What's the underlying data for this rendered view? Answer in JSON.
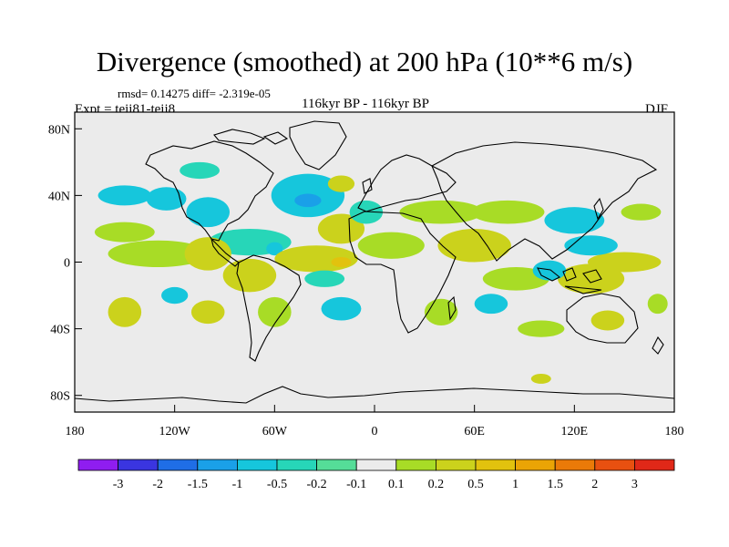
{
  "title": "Divergence (smoothed) at 200 hPa (10**6 m/s)",
  "stats_text": "rmsd= 0.14275 diff= -2.319e-05",
  "experiment": "Expt = teii81-teii8",
  "period": "116kyr BP - 116kyr BP",
  "season": "DJF",
  "map": {
    "lon_range": [
      -180,
      180
    ],
    "lat_range": [
      -90,
      90
    ],
    "x_ticks": [
      {
        "lon": -180,
        "label": "180"
      },
      {
        "lon": -120,
        "label": "120W"
      },
      {
        "lon": -60,
        "label": "60W"
      },
      {
        "lon": 0,
        "label": "0"
      },
      {
        "lon": 60,
        "label": "60E"
      },
      {
        "lon": 120,
        "label": "120E"
      },
      {
        "lon": 180,
        "label": "180"
      }
    ],
    "y_ticks": [
      {
        "lat": 80,
        "label": "80N"
      },
      {
        "lat": 40,
        "label": "40N"
      },
      {
        "lat": 0,
        "label": "0"
      },
      {
        "lat": -40,
        "label": "40S"
      },
      {
        "lat": -80,
        "label": "80S"
      }
    ],
    "background_color": "#ebebeb",
    "coastline_color": "#000000"
  },
  "colorbar": {
    "levels": [
      "-3",
      "-2",
      "-1.5",
      "-1",
      "-0.5",
      "-0.2",
      "-0.1",
      "0.1",
      "0.2",
      "0.5",
      "1",
      "1.5",
      "2",
      "3"
    ],
    "colors": [
      "#8f1df0",
      "#3a35e0",
      "#1f6ee6",
      "#1aa0e8",
      "#16c6dc",
      "#27d6b8",
      "#55dd98",
      "#ebebeb",
      "#a8dc26",
      "#cbd21c",
      "#e2c20e",
      "#eaa405",
      "#ea7a08",
      "#e85010",
      "#e02818"
    ]
  },
  "anomaly_patches": [
    {
      "lon": -150,
      "lat": 40,
      "rx": 16,
      "ry": 6,
      "level": 4
    },
    {
      "lon": -125,
      "lat": 38,
      "rx": 12,
      "ry": 7,
      "level": 4
    },
    {
      "lon": -100,
      "lat": 30,
      "rx": 13,
      "ry": 9,
      "level": 4
    },
    {
      "lon": -40,
      "lat": 40,
      "rx": 22,
      "ry": 13,
      "level": 4
    },
    {
      "lon": -40,
      "lat": 37,
      "rx": 8,
      "ry": 4,
      "level": 3
    },
    {
      "lon": -75,
      "lat": 12,
      "rx": 25,
      "ry": 8,
      "level": 5
    },
    {
      "lon": -60,
      "lat": 8,
      "rx": 5,
      "ry": 4,
      "level": 4
    },
    {
      "lon": -20,
      "lat": 47,
      "rx": 8,
      "ry": 5,
      "level": 9
    },
    {
      "lon": -20,
      "lat": 20,
      "rx": 14,
      "ry": 9,
      "level": 9
    },
    {
      "lon": -5,
      "lat": 30,
      "rx": 10,
      "ry": 7,
      "level": 5
    },
    {
      "lon": 10,
      "lat": 10,
      "rx": 20,
      "ry": 8,
      "level": 8
    },
    {
      "lon": -105,
      "lat": 55,
      "rx": 12,
      "ry": 5,
      "level": 5
    },
    {
      "lon": -130,
      "lat": 5,
      "rx": 30,
      "ry": 8,
      "level": 8
    },
    {
      "lon": -150,
      "lat": 18,
      "rx": 18,
      "ry": 6,
      "level": 8
    },
    {
      "lon": -100,
      "lat": 5,
      "rx": 14,
      "ry": 10,
      "level": 9
    },
    {
      "lon": -75,
      "lat": -8,
      "rx": 16,
      "ry": 10,
      "level": 9
    },
    {
      "lon": -35,
      "lat": 2,
      "rx": 25,
      "ry": 8,
      "level": 9
    },
    {
      "lon": -20,
      "lat": 0,
      "rx": 6,
      "ry": 3,
      "level": 10
    },
    {
      "lon": -30,
      "lat": -10,
      "rx": 12,
      "ry": 5,
      "level": 5
    },
    {
      "lon": 40,
      "lat": 30,
      "rx": 25,
      "ry": 7,
      "level": 8
    },
    {
      "lon": 80,
      "lat": 30,
      "rx": 22,
      "ry": 7,
      "level": 8
    },
    {
      "lon": 60,
      "lat": 10,
      "rx": 22,
      "ry": 10,
      "level": 9
    },
    {
      "lon": 85,
      "lat": -10,
      "rx": 20,
      "ry": 7,
      "level": 8
    },
    {
      "lon": 130,
      "lat": -10,
      "rx": 20,
      "ry": 9,
      "level": 9
    },
    {
      "lon": 150,
      "lat": 0,
      "rx": 22,
      "ry": 6,
      "level": 9
    },
    {
      "lon": 120,
      "lat": 25,
      "rx": 18,
      "ry": 8,
      "level": 4
    },
    {
      "lon": 130,
      "lat": 10,
      "rx": 16,
      "ry": 6,
      "level": 4
    },
    {
      "lon": 105,
      "lat": -5,
      "rx": 10,
      "ry": 6,
      "level": 4
    },
    {
      "lon": 160,
      "lat": 30,
      "rx": 12,
      "ry": 5,
      "level": 8
    },
    {
      "lon": -150,
      "lat": -30,
      "rx": 10,
      "ry": 9,
      "level": 9
    },
    {
      "lon": -100,
      "lat": -30,
      "rx": 10,
      "ry": 7,
      "level": 9
    },
    {
      "lon": -60,
      "lat": -30,
      "rx": 10,
      "ry": 9,
      "level": 8
    },
    {
      "lon": -120,
      "lat": -20,
      "rx": 8,
      "ry": 5,
      "level": 4
    },
    {
      "lon": -20,
      "lat": -28,
      "rx": 12,
      "ry": 7,
      "level": 4
    },
    {
      "lon": 40,
      "lat": -30,
      "rx": 10,
      "ry": 8,
      "level": 8
    },
    {
      "lon": 70,
      "lat": -25,
      "rx": 10,
      "ry": 6,
      "level": 4
    },
    {
      "lon": 100,
      "lat": -40,
      "rx": 14,
      "ry": 5,
      "level": 8
    },
    {
      "lon": 140,
      "lat": -35,
      "rx": 10,
      "ry": 6,
      "level": 9
    },
    {
      "lon": 170,
      "lat": -25,
      "rx": 6,
      "ry": 6,
      "level": 8
    },
    {
      "lon": 100,
      "lat": -70,
      "rx": 6,
      "ry": 3,
      "level": 9
    }
  ]
}
